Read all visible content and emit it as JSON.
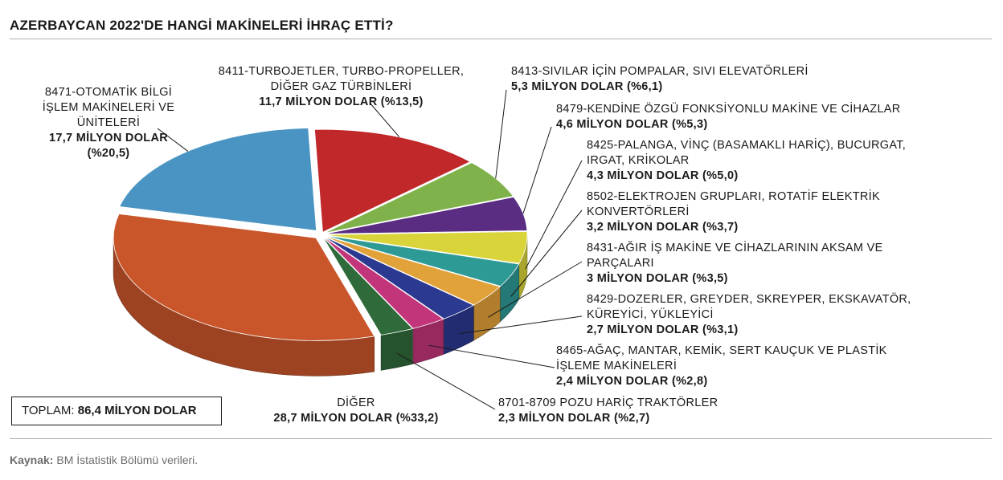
{
  "header": {
    "title": "AZERBAYCAN 2022'DE HANGİ MAKİNELERİ İHRAÇ ETTİ?"
  },
  "total": {
    "label": "TOPLAM:",
    "value": "86,4 MİLYON DOLAR"
  },
  "source": {
    "label": "Kaynak:",
    "text": "BM İstatistik Bölümü verileri."
  },
  "chart_data": {
    "type": "pie",
    "unit": "milyon dolar",
    "slices": [
      {
        "name": "8411-TURBOJETLER, TURBO-PROPELLER,\nDİĞER GAZ TÜRBİNLERİ",
        "value": 11.7,
        "value_text": "11,7 MİLYON DOLAR (%13,5)",
        "share": 13.5,
        "color": "#c0282a"
      },
      {
        "name": "8413-SIVILAR İÇİN POMPALAR, SIVI ELEVATÖRLERİ",
        "value": 5.3,
        "value_text": "5,3 MİLYON DOLAR (%6,1)",
        "share": 6.1,
        "color": "#7fb24a"
      },
      {
        "name": "8479-KENDİNE ÖZGÜ FONKSİYONLU MAKİNE VE CİHAZLAR",
        "value": 4.6,
        "value_text": "4,6 MİLYON DOLAR (%5,3)",
        "share": 5.3,
        "color": "#5a2d82"
      },
      {
        "name": "8425-PALANGA, VİNÇ (BASAMAKLI HARİÇ), BUCURGAT,\nIRGAT, KRİKOLAR",
        "value": 4.3,
        "value_text": "4,3 MİLYON DOLAR (%5,0)",
        "share": 5.0,
        "color": "#d9d43a"
      },
      {
        "name": "8502-ELEKTROJEN GRUPLARI, ROTATİF ELEKTRİK\nKONVERTÖRLERİ",
        "value": 3.2,
        "value_text": "3,2 MİLYON DOLAR (%3,7)",
        "share": 3.7,
        "color": "#2e9a96"
      },
      {
        "name": "8431-AĞIR İŞ MAKİNE VE CİHAZLARININ AKSAM VE\nPARÇALARI",
        "value": 3.0,
        "value_text": "3 MİLYON DOLAR (%3,5)",
        "share": 3.5,
        "color": "#e2a23a"
      },
      {
        "name": "8429-DOZERLER, GREYDER, SKREYPER, EKSKAVATÖR,\nKÜREYİCİ, YÜKLEYİCİ",
        "value": 2.7,
        "value_text": "2,7 MİLYON DOLAR (%3,1)",
        "share": 3.1,
        "color": "#2b3990"
      },
      {
        "name": "8465-AĞAÇ, MANTAR, KEMİK, SERT KAUÇUK VE PLASTİK\nİŞLEME MAKİNELERİ",
        "value": 2.4,
        "value_text": "2,4 MİLYON DOLAR (%2,8)",
        "share": 2.8,
        "color": "#c2357a"
      },
      {
        "name": "8701-8709 POZU HARİÇ TRAKTÖRLER",
        "value": 2.3,
        "value_text": "2,3 MİLYON DOLAR (%2,7)",
        "share": 2.7,
        "color": "#2f6b3a"
      },
      {
        "name": "DİĞER",
        "value": 28.7,
        "value_text": "28,7 MİLYON DOLAR (%33,2)",
        "share": 33.2,
        "color": "#c9562b"
      },
      {
        "name": "8471-OTOMATİK BİLGİ\nİŞLEM MAKİNELERİ VE\nÜNİTELERİ",
        "value": 17.7,
        "value_text": "17,7 MİLYON DOLAR\n(%20,5)",
        "share": 20.5,
        "color": "#4a94c4"
      }
    ]
  }
}
